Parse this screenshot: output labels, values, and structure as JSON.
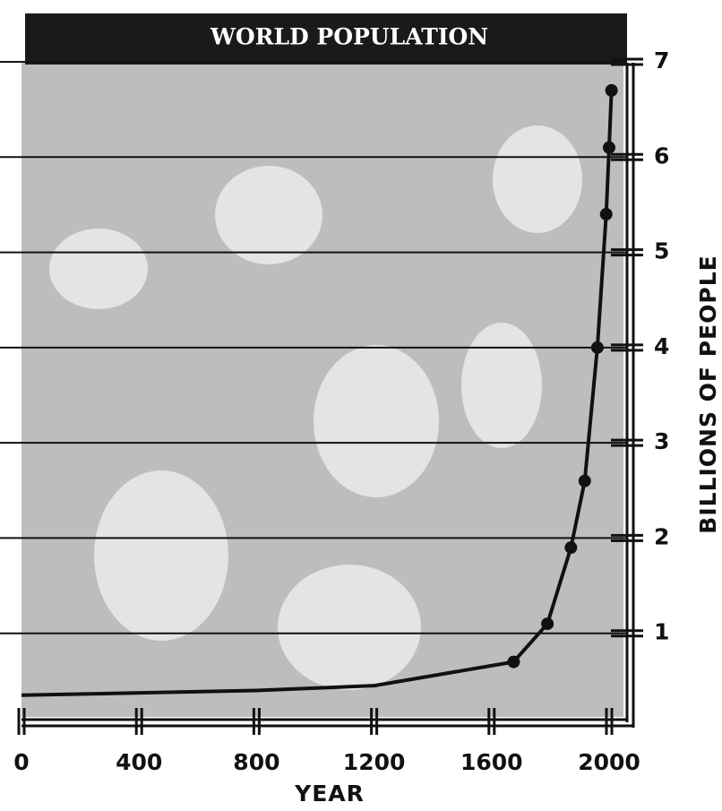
{
  "chart_data": {
    "type": "line",
    "title": "WORLD POPULATION",
    "x_label": "YEAR",
    "y_label": "BILLIONS OF PEOPLE",
    "x": [
      0,
      800,
      1200,
      1675,
      1790,
      1870,
      1917,
      1960,
      1990,
      2000,
      2008
    ],
    "values": [
      0.35,
      0.4,
      0.45,
      0.7,
      1.1,
      1.9,
      2.6,
      4.0,
      5.4,
      6.1,
      6.7
    ],
    "markers": [
      false,
      false,
      false,
      true,
      true,
      true,
      true,
      true,
      true,
      true,
      true
    ],
    "color": "#111111",
    "xlim": [
      0,
      2000
    ],
    "xticks": [
      0,
      400,
      800,
      1200,
      1600,
      2000
    ],
    "ylim": [
      0,
      7
    ],
    "yticks": [
      1,
      2,
      3,
      4,
      5,
      6,
      7
    ],
    "grid": true
  }
}
